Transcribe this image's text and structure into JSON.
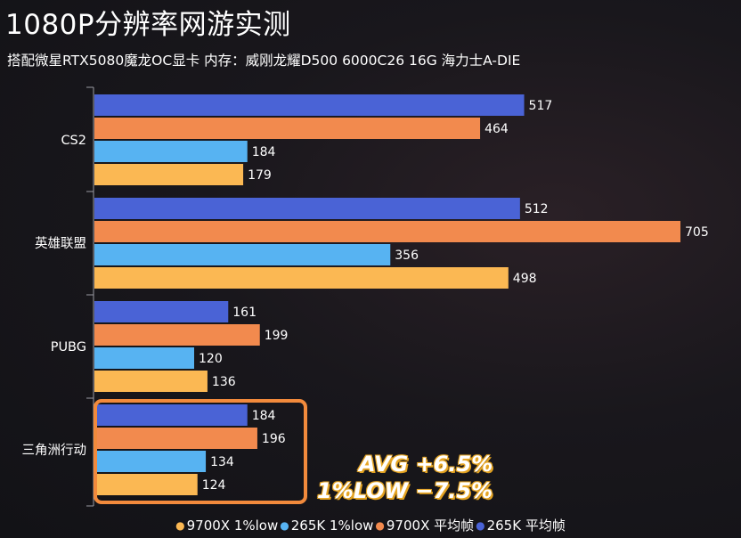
{
  "page": {
    "title": "1080P分辨率网游实测",
    "subtitle": "搭配微星RTX5080魔龙OC显卡 内存：威刚龙耀D500 6000C26 16G 海力士A-DIE"
  },
  "annotations": {
    "avg": "AVG +6.5%",
    "low": "1%LOW −7.5%",
    "color": "#f5b63c",
    "box_color": "#f28a3c"
  },
  "chart_data": {
    "type": "bar",
    "orientation": "horizontal",
    "categories": [
      "CS2",
      "英雄联盟",
      "PUBG",
      "三角洲行动"
    ],
    "series": [
      {
        "name": "265K 平均帧",
        "color": "#4a63d6",
        "values": [
          517,
          512,
          161,
          184
        ]
      },
      {
        "name": "9700X 平均帧",
        "color": "#f28a4e",
        "values": [
          464,
          705,
          199,
          196
        ]
      },
      {
        "name": "265K 1%low",
        "color": "#57b3f2",
        "values": [
          184,
          356,
          120,
          134
        ]
      },
      {
        "name": "9700X 1%low",
        "color": "#fbb853",
        "values": [
          179,
          498,
          136,
          124
        ]
      }
    ],
    "xlim": [
      0,
      705
    ],
    "legend": {
      "placement": "bottom",
      "order": [
        "9700X 1%low",
        "265K 1%low",
        "9700X 平均帧",
        "265K 平均帧"
      ]
    },
    "grid": false
  }
}
